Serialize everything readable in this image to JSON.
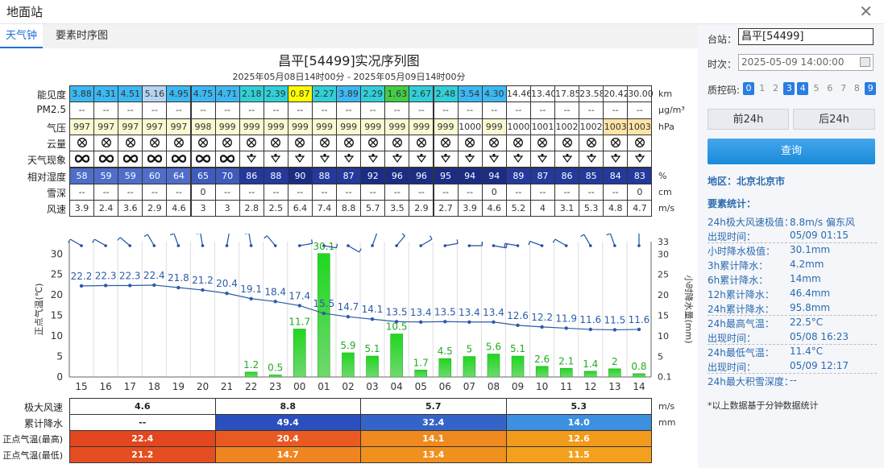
{
  "window": {
    "title": "地面站"
  },
  "tabs": [
    {
      "label": "天气钟",
      "active": true
    },
    {
      "label": "要素时序图",
      "active": false
    }
  ],
  "chart_title": "昌平[54499]实况序列图",
  "chart_subtitle": "2025年05月08日14时00分 - 2025年05月09日14时00分",
  "rows": [
    {
      "label": "能见度",
      "unit": "km",
      "values": [
        "3.88",
        "4.31",
        "4.51",
        "5.16",
        "4.95",
        "4.75",
        "4.71",
        "2.18",
        "2.39",
        "0.87",
        "2.27",
        "3.89",
        "2.29",
        "1.63",
        "2.67",
        "2.48",
        "3.54",
        "4.30",
        "14.46",
        "13.40",
        "17.85",
        "23.58",
        "20.42",
        "30.00"
      ],
      "colors": [
        "#3cb8f2",
        "#3cb8f2",
        "#3cb8f2",
        "#b4d5f0",
        "#3cb8f2",
        "#3cb8f2",
        "#3cb8f2",
        "#31d0d8",
        "#31d0d8",
        "#ffff00",
        "#31d0d8",
        "#3cb8f2",
        "#31d0d8",
        "#44cc44",
        "#31d0d8",
        "#31d0d8",
        "#3cb8f2",
        "#3cb8f2",
        "#ffffff",
        "#ffffff",
        "#ffffff",
        "#ffffff",
        "#ffffff",
        "#ffffff"
      ]
    },
    {
      "label": "PM2.5",
      "unit": "μg/m³",
      "values": [
        "--",
        "--",
        "--",
        "--",
        "--",
        "--",
        "--",
        "--",
        "--",
        "--",
        "--",
        "--",
        "--",
        "--",
        "--",
        "--",
        "--",
        "--",
        "--",
        "--",
        "--",
        "--",
        "--",
        "--"
      ]
    },
    {
      "label": "气压",
      "unit": "hPa",
      "values": [
        "997",
        "997",
        "997",
        "997",
        "997",
        "998",
        "999",
        "999",
        "999",
        "999",
        "999",
        "999",
        "999",
        "999",
        "999",
        "999",
        "1000",
        "999",
        "1000",
        "1001",
        "1002",
        "1002",
        "1003",
        "1003"
      ],
      "colors": [
        "#fafad2",
        "#fafad2",
        "#fafad2",
        "#fafad2",
        "#fafad2",
        "#fafad2",
        "#fafad2",
        "#fafad2",
        "#fafad2",
        "#fafad2",
        "#fafad2",
        "#fafad2",
        "#fafad2",
        "#fafad2",
        "#fafad2",
        "#fafad2",
        "#ffffff",
        "#fafad2",
        "#ffffff",
        "#ffffff",
        "#ffffff",
        "#ffffff",
        "#ffe4a6",
        "#ffe4a6"
      ]
    },
    {
      "label": "云量",
      "unit": "",
      "symbols": "cloud"
    },
    {
      "label": "天气现象",
      "unit": "",
      "symbols": "weather"
    },
    {
      "label": "相对湿度",
      "unit": "%",
      "values": [
        "58",
        "59",
        "59",
        "60",
        "64",
        "65",
        "70",
        "86",
        "88",
        "90",
        "88",
        "87",
        "92",
        "96",
        "96",
        "95",
        "94",
        "94",
        "89",
        "87",
        "86",
        "85",
        "84",
        "83"
      ],
      "colors": [
        "#4f6dc9",
        "#4f6dc9",
        "#4f6dc9",
        "#4f6dc9",
        "#4f6dc9",
        "#3f5bbd",
        "#3f5bbd",
        "#24399b",
        "#24399b",
        "#1b2c85",
        "#24399b",
        "#24399b",
        "#1b2c85",
        "#1b2c85",
        "#1b2c85",
        "#1b2c85",
        "#1b2c85",
        "#1b2c85",
        "#24399b",
        "#24399b",
        "#24399b",
        "#24399b",
        "#24399b",
        "#24399b"
      ]
    },
    {
      "label": "雪深",
      "unit": "cm",
      "values": [
        "--",
        "--",
        "--",
        "--",
        "--",
        "0",
        "--",
        "--",
        "--",
        "--",
        "--",
        "--",
        "--",
        "--",
        "--",
        "--",
        "--",
        "0",
        "--",
        "--",
        "--",
        "--",
        "--",
        "0"
      ]
    },
    {
      "label": "风速",
      "unit": "m/s",
      "values": [
        "3.9",
        "2.4",
        "3.6",
        "2.9",
        "4.6",
        "3",
        "3",
        "2.8",
        "2.5",
        "6.4",
        "7.4",
        "8.8",
        "5.7",
        "3.5",
        "2.9",
        "2.7",
        "3.9",
        "4.6",
        "5.2",
        "4",
        "3.1",
        "5.3",
        "4.8",
        "4.7"
      ]
    }
  ],
  "chart_data": {
    "type": "bar+line",
    "categories": [
      "15",
      "16",
      "17",
      "18",
      "19",
      "20",
      "21",
      "22",
      "23",
      "00",
      "01",
      "02",
      "03",
      "04",
      "05",
      "06",
      "07",
      "08",
      "09",
      "10",
      "11",
      "12",
      "13",
      "14"
    ],
    "y_left_label": "正点气温(℃)",
    "y_right_label": "小时降水量(mm)",
    "y_left_ticks": [
      "30",
      "25",
      "20",
      "15",
      "10",
      "5",
      "0"
    ],
    "y_right_ticks": [
      "33",
      "30",
      "25",
      "20",
      "15",
      "10",
      "5",
      "0.1"
    ],
    "ylim": [
      0,
      33
    ],
    "series": [
      {
        "name": "正点气温",
        "type": "line",
        "color": "#2a5ca8",
        "values": [
          22.2,
          22.3,
          22.3,
          22.4,
          21.8,
          21.2,
          20.4,
          19.1,
          18.4,
          17.4,
          15.5,
          14.7,
          14.1,
          13.5,
          13.4,
          13.5,
          13.4,
          13.4,
          12.6,
          12.2,
          11.9,
          11.6,
          11.5,
          11.6
        ],
        "labels": [
          "22.2",
          "22.3",
          "22.3",
          "22.4",
          "21.8",
          "21.2",
          "20.4",
          "19.1",
          "18.4",
          "17.4",
          "15.5",
          "14.7",
          "14.1",
          "13.5",
          "13.4",
          "13.5",
          "13.4",
          "13.4",
          "12.6",
          "12.2",
          "11.9",
          "11.6",
          "11.5",
          "11.6"
        ]
      },
      {
        "name": "小时降水量",
        "type": "bar",
        "color": "#33bb33",
        "values": [
          0,
          0,
          0,
          0,
          0,
          0,
          0,
          1.2,
          0.5,
          11.7,
          30.1,
          5.9,
          5.1,
          10.5,
          1.7,
          4.5,
          5,
          5.6,
          5.1,
          2.6,
          2.1,
          1.4,
          2,
          0.8
        ],
        "labels": [
          "",
          "",
          "",
          "",
          "",
          "",
          "",
          "1.2",
          "0.5",
          "11.7",
          "30.1",
          "5.9",
          "5.1",
          "10.5",
          "1.7",
          "4.5",
          "5",
          "5.6",
          "5.1",
          "2.6",
          "2.1",
          "1.4",
          "2",
          "0.8"
        ]
      }
    ],
    "wind_dirs": [
      300,
      300,
      310,
      330,
      340,
      350,
      10,
      350,
      320,
      80,
      100,
      120,
      20,
      40,
      60,
      80,
      90,
      100,
      280,
      290,
      300,
      330,
      340,
      0
    ]
  },
  "summary": {
    "rows": [
      {
        "label": "极大风速",
        "unit": "m/s",
        "cells": [
          {
            "value": "4.6",
            "bg": "#ffffff",
            "fg": "#222"
          },
          {
            "value": "8.8",
            "bg": "#ffffff",
            "fg": "#222"
          },
          {
            "value": "5.7",
            "bg": "#ffffff",
            "fg": "#222"
          },
          {
            "value": "5.3",
            "bg": "#ffffff",
            "fg": "#222"
          }
        ]
      },
      {
        "label": "累计降水",
        "unit": "mm",
        "cells": [
          {
            "value": "--",
            "bg": "#ffffff",
            "fg": "#222"
          },
          {
            "value": "49.4",
            "bg": "#2a4fbf",
            "fg": "#fff"
          },
          {
            "value": "32.4",
            "bg": "#3564c9",
            "fg": "#fff"
          },
          {
            "value": "14.0",
            "bg": "#3d8fe0",
            "fg": "#fff"
          }
        ]
      },
      {
        "label": "正点气温(最高)",
        "unit": "",
        "cells": [
          {
            "value": "22.4",
            "bg": "#e2471f",
            "fg": "#fff"
          },
          {
            "value": "20.4",
            "bg": "#e95a22",
            "fg": "#fff"
          },
          {
            "value": "14.1",
            "bg": "#f08a1e",
            "fg": "#fff"
          },
          {
            "value": "12.6",
            "bg": "#f29a1c",
            "fg": "#fff"
          }
        ]
      },
      {
        "label": "正点气温(最低)",
        "unit": "",
        "cells": [
          {
            "value": "21.2",
            "bg": "#e54e20",
            "fg": "#fff"
          },
          {
            "value": "14.7",
            "bg": "#ef8520",
            "fg": "#fff"
          },
          {
            "value": "13.4",
            "bg": "#f0901e",
            "fg": "#fff"
          },
          {
            "value": "11.5",
            "bg": "#f3a01c",
            "fg": "#fff"
          }
        ]
      }
    ]
  },
  "sidebar": {
    "station_label": "台站：",
    "station_value": "昌平[54499]",
    "time_label": "时次：",
    "time_value": "2025-05-09 14:00:00",
    "qc_label": "质控码:",
    "qc_codes": [
      {
        "code": "0",
        "on": true
      },
      {
        "code": "1",
        "on": false
      },
      {
        "code": "2",
        "on": false
      },
      {
        "code": "3",
        "on": true
      },
      {
        "code": "4",
        "on": true
      },
      {
        "code": "5",
        "on": false
      },
      {
        "code": "6",
        "on": false
      },
      {
        "code": "7",
        "on": false
      },
      {
        "code": "8",
        "on": false
      },
      {
        "code": "9",
        "on": true
      }
    ],
    "prev_label": "前24h",
    "next_label": "后24h",
    "query_label": "查询",
    "region": "地区：北京北京市",
    "stats_title": "要素统计：",
    "stats": [
      {
        "k": "24h极大风速极值：",
        "v": "8.8m/s 偏东风"
      },
      {
        "k": "出现时间：",
        "v": "05/09 01:15"
      },
      {
        "k": "小时降水极值：",
        "v": "30.1mm"
      },
      {
        "k": "3h累计降水：",
        "v": "4.2mm"
      },
      {
        "k": "6h累计降水：",
        "v": "14mm"
      },
      {
        "k": "12h累计降水：",
        "v": "46.4mm"
      },
      {
        "k": "24h累计降水：",
        "v": "95.8mm"
      },
      {
        "k": "24h最高气温：",
        "v": "22.5°C"
      },
      {
        "k": "出现时间：",
        "v": "05/08 16:23"
      },
      {
        "k": "24h最低气温：",
        "v": "11.4°C"
      },
      {
        "k": "出现时间：",
        "v": "05/09 12:17"
      },
      {
        "k": "24h最大积雪深度：",
        "v": "--"
      }
    ],
    "footnote": "*以上数据基于分钟数据统计"
  }
}
